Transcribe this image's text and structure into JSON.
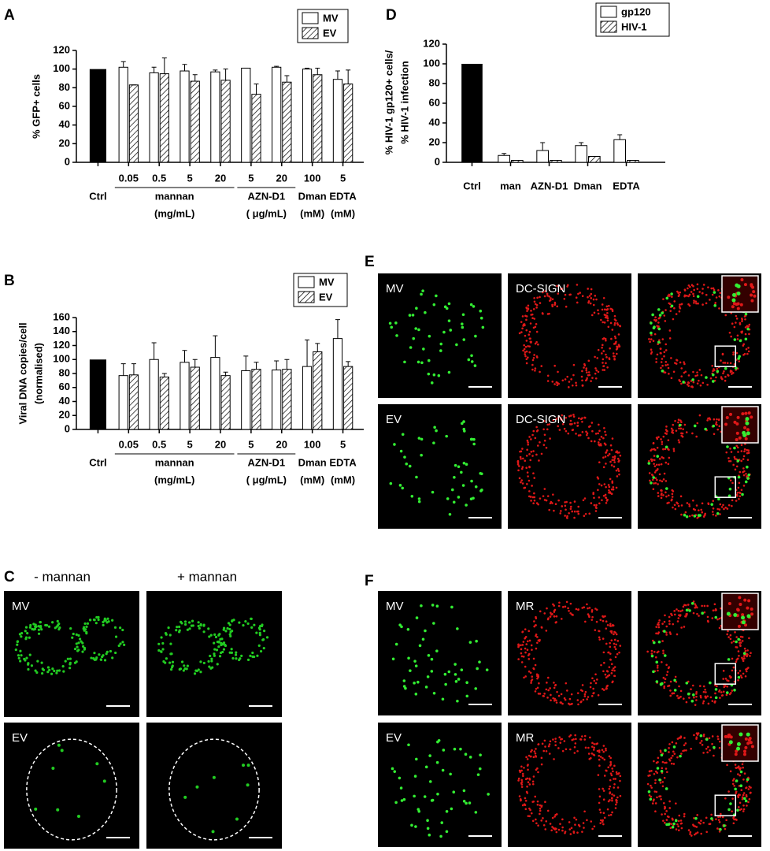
{
  "panel_labels": [
    "A",
    "B",
    "C",
    "D",
    "E",
    "F"
  ],
  "chart_data": [
    {
      "type": "bar",
      "ylabel": "% GFP+ cells",
      "groups": [
        {
          "label": "Ctrl",
          "categories": [
            null
          ]
        },
        {
          "label": "mannan",
          "unit": "(mg/mL)",
          "categories": [
            "0.05",
            "0.5",
            "5",
            "20"
          ],
          "underline": true
        },
        {
          "label": "AZN-D1",
          "unit": "( μg/mL)",
          "categories": [
            "5",
            "20"
          ],
          "underline": true
        },
        {
          "label": "Dman",
          "unit": "(mM)",
          "categories": [
            "100"
          ]
        },
        {
          "label": "EDTA",
          "unit": "(mM)",
          "categories": [
            "5"
          ]
        }
      ],
      "control": {
        "value": 100,
        "color": "#000000"
      },
      "series": [
        {
          "name": "MV",
          "color": "#ffffff",
          "values": [
            null,
            102,
            96,
            98,
            97,
            101,
            102,
            100,
            89
          ],
          "errors": [
            null,
            6,
            6,
            7,
            2,
            0,
            1,
            1,
            9
          ]
        },
        {
          "name": "EV",
          "color": "#ffffff",
          "pattern": "hatch",
          "values": [
            null,
            83,
            95,
            87,
            88,
            73,
            86,
            94,
            84
          ],
          "errors": [
            null,
            0,
            17,
            7,
            12,
            11,
            7,
            7,
            15
          ]
        }
      ],
      "ylim": [
        0,
        120
      ],
      "yticks": [
        0,
        20,
        40,
        60,
        80,
        100,
        120
      ],
      "legend": "top-right"
    },
    {
      "type": "bar",
      "ylabel": [
        "Viral  DNA copies/cell",
        "(normalised)"
      ],
      "groups": [
        {
          "label": "Ctrl",
          "categories": [
            null
          ]
        },
        {
          "label": "mannan",
          "unit": "(mg/mL)",
          "categories": [
            "0.05",
            "0.5",
            "5",
            "20"
          ],
          "underline": true
        },
        {
          "label": "AZN-D1",
          "unit": "( μg/mL)",
          "categories": [
            "5",
            "20"
          ],
          "underline": true
        },
        {
          "label": "Dman",
          "unit": "(mM)",
          "categories": [
            "100"
          ]
        },
        {
          "label": "EDTA",
          "unit": "(mM)",
          "categories": [
            "5"
          ]
        }
      ],
      "control": {
        "value": 100,
        "color": "#000000"
      },
      "series": [
        {
          "name": "MV",
          "color": "#ffffff",
          "values": [
            null,
            77,
            100,
            96,
            103,
            84,
            85,
            90,
            130
          ],
          "errors": [
            null,
            17,
            24,
            17,
            31,
            21,
            13,
            38,
            27
          ]
        },
        {
          "name": "EV",
          "color": "#ffffff",
          "pattern": "hatch",
          "values": [
            null,
            78,
            75,
            89,
            77,
            86,
            86,
            111,
            90
          ],
          "errors": [
            null,
            16,
            5,
            11,
            5,
            10,
            14,
            12,
            7
          ]
        }
      ],
      "ylim": [
        0,
        160
      ],
      "yticks": [
        0,
        20,
        40,
        60,
        80,
        100,
        120,
        140,
        160
      ],
      "legend": "top-right"
    },
    {
      "type": "bar",
      "ylabel": [
        "% HIV-1 gp120+ cells/",
        "% HIV-1 infection"
      ],
      "categories": [
        "Ctrl",
        "man",
        "AZN-D1",
        "Dman",
        "EDTA"
      ],
      "control": {
        "value": 100,
        "color": "#000000"
      },
      "series": [
        {
          "name": "gp120",
          "color": "#ffffff",
          "values": [
            null,
            7,
            12,
            17,
            23
          ],
          "errors": [
            null,
            2,
            8,
            3,
            5
          ]
        },
        {
          "name": "HIV-1",
          "color": "#ffffff",
          "pattern": "hatch",
          "values": [
            null,
            2,
            2,
            6,
            2
          ],
          "errors": [
            null,
            0,
            0,
            0,
            0
          ]
        }
      ],
      "ylim": [
        0,
        120
      ],
      "yticks": [
        0,
        20,
        40,
        60,
        80,
        100,
        120
      ],
      "legend": "top-right"
    }
  ],
  "micrographs": {
    "C": {
      "column_titles": [
        "- mannan",
        "+ mannan"
      ],
      "row_labels": [
        "MV",
        "EV"
      ]
    },
    "E": {
      "tile_labels": [
        [
          "MV",
          "DC-SIGN"
        ],
        [
          "EV",
          "DC-SIGN"
        ]
      ]
    },
    "F": {
      "tile_labels": [
        [
          "MV",
          "MR"
        ],
        [
          "EV",
          "MR"
        ]
      ]
    }
  }
}
